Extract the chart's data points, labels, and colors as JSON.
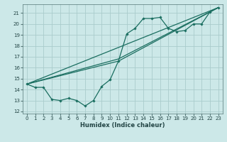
{
  "xlabel": "Humidex (Indice chaleur)",
  "bg_color": "#cce8e8",
  "grid_color": "#aacccc",
  "line_color": "#1a6e60",
  "xlim": [
    -0.5,
    23.5
  ],
  "ylim": [
    11.8,
    21.8
  ],
  "yticks": [
    12,
    13,
    14,
    15,
    16,
    17,
    18,
    19,
    20,
    21
  ],
  "xticks": [
    0,
    1,
    2,
    3,
    4,
    5,
    6,
    7,
    8,
    9,
    10,
    11,
    12,
    13,
    14,
    15,
    16,
    17,
    18,
    19,
    20,
    21,
    22,
    23
  ],
  "line1_x": [
    0,
    1,
    2,
    3,
    4,
    5,
    6,
    7,
    8,
    9,
    10,
    11,
    12,
    13,
    14,
    15,
    16,
    17,
    18,
    19,
    20,
    21,
    22,
    23
  ],
  "line1_y": [
    14.5,
    14.2,
    14.2,
    13.1,
    13.0,
    13.2,
    13.0,
    12.5,
    13.0,
    14.3,
    14.9,
    16.6,
    19.1,
    19.6,
    20.5,
    20.5,
    20.6,
    19.6,
    19.3,
    19.4,
    20.0,
    20.0,
    21.1,
    21.5
  ],
  "line2_x": [
    0,
    23
  ],
  "line2_y": [
    14.5,
    21.5
  ],
  "line3_x": [
    0,
    11,
    23
  ],
  "line3_y": [
    14.5,
    16.6,
    21.5
  ],
  "line4_x": [
    0,
    11,
    23
  ],
  "line4_y": [
    14.5,
    16.8,
    21.5
  ]
}
